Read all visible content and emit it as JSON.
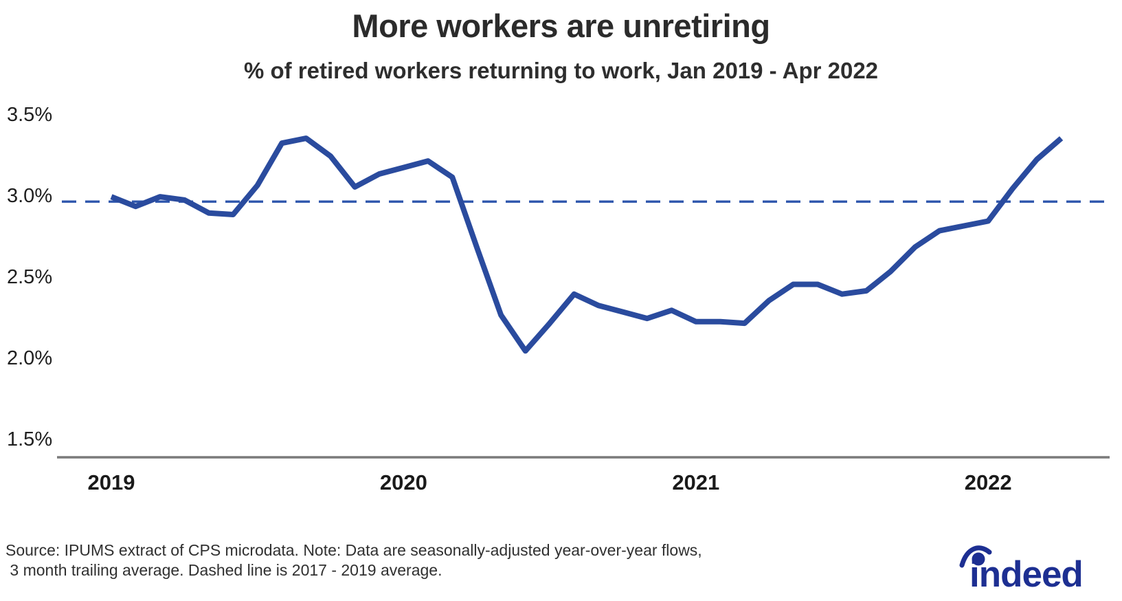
{
  "header": {
    "title": "More workers are unretiring",
    "subtitle": "% of retired workers returning to work, Jan 2019 - Apr 2022"
  },
  "footer": {
    "source_line1": "Source: IPUMS extract of CPS microdata. Note: Data are seasonally-adjusted year-over-year flows,",
    "source_line2": " 3 month trailing average. Dashed line is 2017 - 2019 average.",
    "logo_text": "indeed"
  },
  "chart_data": {
    "type": "line",
    "title": "More workers are unretiring",
    "subtitle": "% of retired workers returning to work, Jan 2019 - Apr 2022",
    "x": [
      "Jan 2019",
      "Feb 2019",
      "Mar 2019",
      "Apr 2019",
      "May 2019",
      "Jun 2019",
      "Jul 2019",
      "Aug 2019",
      "Sep 2019",
      "Oct 2019",
      "Nov 2019",
      "Dec 2019",
      "Jan 2020",
      "Feb 2020",
      "Mar 2020",
      "Apr 2020",
      "May 2020",
      "Jun 2020",
      "Jul 2020",
      "Aug 2020",
      "Sep 2020",
      "Oct 2020",
      "Nov 2020",
      "Dec 2020",
      "Jan 2021",
      "Feb 2021",
      "Mar 2021",
      "Apr 2021",
      "May 2021",
      "Jun 2021",
      "Jul 2021",
      "Aug 2021",
      "Sep 2021",
      "Oct 2021",
      "Nov 2021",
      "Dec 2021",
      "Jan 2022",
      "Feb 2022",
      "Mar 2022",
      "Apr 2022"
    ],
    "series": [
      {
        "name": "% of retired workers returning to work",
        "values": [
          2.99,
          2.93,
          2.99,
          2.97,
          2.89,
          2.88,
          3.06,
          3.32,
          3.35,
          3.24,
          3.05,
          3.13,
          3.17,
          3.21,
          3.11,
          2.68,
          2.26,
          2.04,
          2.21,
          2.39,
          2.32,
          2.28,
          2.24,
          2.29,
          2.22,
          2.22,
          2.21,
          2.35,
          2.45,
          2.45,
          2.39,
          2.41,
          2.53,
          2.68,
          2.78,
          2.81,
          2.84,
          3.04,
          3.22,
          3.35
        ]
      }
    ],
    "reference_line": {
      "value": 2.96,
      "label": "2017 - 2019 average",
      "style": "dashed"
    },
    "y_ticks": [
      {
        "value": 3.5,
        "label": "3.5%"
      },
      {
        "value": 3.0,
        "label": "3.0%"
      },
      {
        "value": 2.5,
        "label": "2.5%"
      },
      {
        "value": 2.0,
        "label": "2.0%"
      },
      {
        "value": 1.5,
        "label": "1.5%"
      }
    ],
    "x_ticks": [
      {
        "month_index": 0,
        "label": "2019"
      },
      {
        "month_index": 12,
        "label": "2020"
      },
      {
        "month_index": 24,
        "label": "2021"
      },
      {
        "month_index": 36,
        "label": "2022"
      }
    ],
    "ylim": [
      1.4,
      3.6
    ],
    "grid": false,
    "legend": "none",
    "colors": {
      "line": "#2a4b9e",
      "dashed": "#2d55ac",
      "axis": "#7a7a7a",
      "tick_text": "#1f1f1f",
      "logo": "#1d2f92"
    }
  }
}
